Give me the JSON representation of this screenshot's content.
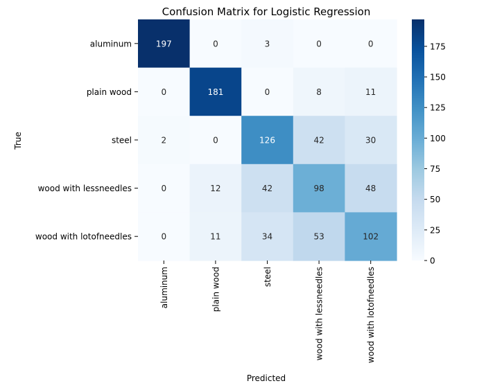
{
  "chart_data": {
    "type": "heatmap",
    "title": "Confusion Matrix for Logistic Regression",
    "xlabel": "Predicted",
    "ylabel": "True",
    "x_categories": [
      "aluminum",
      "plain wood",
      "steel",
      "wood with lessneedles",
      "wood with lotofneedles"
    ],
    "y_categories": [
      "aluminum",
      "plain wood",
      "steel",
      "wood with lessneedles",
      "wood with lotofneedles"
    ],
    "matrix": [
      [
        197,
        0,
        3,
        0,
        0
      ],
      [
        0,
        181,
        0,
        8,
        11
      ],
      [
        2,
        0,
        126,
        42,
        30
      ],
      [
        0,
        12,
        42,
        98,
        48
      ],
      [
        0,
        11,
        34,
        53,
        102
      ]
    ],
    "colormap": "Blues",
    "color_range": [
      0,
      197
    ],
    "colorbar_ticks": [
      0,
      25,
      50,
      75,
      100,
      125,
      150,
      175
    ],
    "colorbar_tick_labels": [
      "0",
      "25",
      "50",
      "75",
      "100",
      "125",
      "150",
      "175"
    ],
    "annotations": "cell values shown",
    "grid": false,
    "colors": {
      "low": "#f7fbff",
      "high": "#08306b",
      "text_dark": "#262626",
      "text_light": "#ffffff"
    }
  }
}
